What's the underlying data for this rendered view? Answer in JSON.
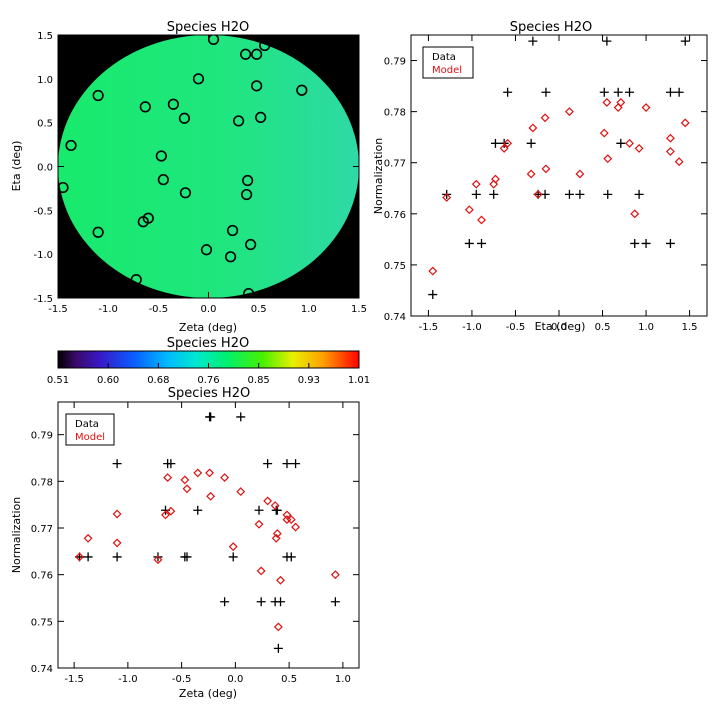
{
  "figure": {
    "colors": {
      "frame": "#000000",
      "data_marker": "#000000",
      "model_marker": "#e01010",
      "map_background": "#000000",
      "map_fill": "#1fe878",
      "map_fill_edge": "#27dc9a"
    }
  },
  "chart_data": [
    {
      "id": "map",
      "type": "heatmap",
      "title": "Species H2O",
      "xlabel": "Zeta (deg)",
      "ylabel": "Eta (deg)",
      "xlim": [
        -1.5,
        1.5
      ],
      "ylim": [
        -1.5,
        1.5
      ],
      "xticks": [
        "-1.5",
        "-1.0",
        "-0.5",
        "0.0",
        "0.5",
        "1.0",
        "1.5"
      ],
      "yticks": [
        "-1.5",
        "-1.0",
        "-0.5",
        "0.0",
        "0.5",
        "1.0",
        "1.5"
      ],
      "field_radius_deg": 1.5,
      "field_value": 0.78,
      "marker": "circle",
      "points": [
        {
          "x": 0.05,
          "y": 1.45
        },
        {
          "x": 0.37,
          "y": 1.28
        },
        {
          "x": 0.48,
          "y": 1.28
        },
        {
          "x": 0.56,
          "y": 1.38
        },
        {
          "x": -0.1,
          "y": 1.0
        },
        {
          "x": 0.48,
          "y": 0.92
        },
        {
          "x": 0.93,
          "y": 0.87
        },
        {
          "x": -1.1,
          "y": 0.81
        },
        {
          "x": -0.35,
          "y": 0.71
        },
        {
          "x": -0.63,
          "y": 0.68
        },
        {
          "x": -0.24,
          "y": 0.55
        },
        {
          "x": 0.52,
          "y": 0.56
        },
        {
          "x": 0.3,
          "y": 0.52
        },
        {
          "x": -1.37,
          "y": 0.24
        },
        {
          "x": -0.47,
          "y": 0.12
        },
        {
          "x": -0.45,
          "y": -0.15
        },
        {
          "x": 0.39,
          "y": -0.16
        },
        {
          "x": -1.45,
          "y": -0.24
        },
        {
          "x": -0.23,
          "y": -0.3
        },
        {
          "x": 0.38,
          "y": -0.32
        },
        {
          "x": -0.6,
          "y": -0.59
        },
        {
          "x": -0.65,
          "y": -0.63
        },
        {
          "x": 0.24,
          "y": -0.73
        },
        {
          "x": -1.1,
          "y": -0.75
        },
        {
          "x": 0.42,
          "y": -0.89
        },
        {
          "x": -0.02,
          "y": -0.95
        },
        {
          "x": 0.22,
          "y": -1.03
        },
        {
          "x": -0.72,
          "y": -1.29
        },
        {
          "x": 0.4,
          "y": -1.45
        }
      ]
    },
    {
      "id": "colorbar",
      "type": "heatmap",
      "title": "Species H2O",
      "range": [
        0.51,
        1.01
      ],
      "ticks": [
        "0.51",
        "0.60",
        "0.68",
        "0.76",
        "0.85",
        "0.93",
        "1.01"
      ]
    },
    {
      "id": "eta_plot",
      "type": "scatter",
      "title": "Species H2O",
      "xlabel": "Eta (deg)",
      "ylabel": "Normalization",
      "xlim": [
        -1.7,
        1.7
      ],
      "ylim": [
        0.74,
        0.795
      ],
      "xticks": [
        "-1.5",
        "-1.0",
        "-0.5",
        "0.0",
        "0.5",
        "1.0",
        "1.5"
      ],
      "yticks": [
        "0.74",
        "0.75",
        "0.76",
        "0.77",
        "0.78",
        "0.79"
      ],
      "legend": {
        "placement": "top-left",
        "entries": [
          "Data",
          "Model"
        ]
      },
      "series": [
        {
          "name": "Data",
          "marker": "plus",
          "points": [
            [
              -1.45,
              0.7442
            ],
            [
              -1.29,
              0.7638
            ],
            [
              -1.03,
              0.7542
            ],
            [
              -0.95,
              0.7638
            ],
            [
              -0.89,
              0.7542
            ],
            [
              -0.75,
              0.7638
            ],
            [
              -0.73,
              0.7738
            ],
            [
              -0.63,
              0.7738
            ],
            [
              -0.59,
              0.7838
            ],
            [
              -0.32,
              0.7738
            ],
            [
              -0.3,
              0.7938
            ],
            [
              -0.24,
              0.7638
            ],
            [
              -0.16,
              0.7638
            ],
            [
              -0.15,
              0.7838
            ],
            [
              0.12,
              0.7638
            ],
            [
              0.24,
              0.7638
            ],
            [
              0.52,
              0.7838
            ],
            [
              0.55,
              0.7938
            ],
            [
              0.56,
              0.7638
            ],
            [
              0.68,
              0.7838
            ],
            [
              0.71,
              0.7738
            ],
            [
              0.81,
              0.7838
            ],
            [
              0.87,
              0.7542
            ],
            [
              0.92,
              0.7638
            ],
            [
              1.0,
              0.7542
            ],
            [
              1.28,
              0.7838
            ],
            [
              1.28,
              0.7542
            ],
            [
              1.38,
              0.7838
            ],
            [
              1.45,
              0.7938
            ]
          ]
        },
        {
          "name": "Model",
          "marker": "diamond",
          "points": [
            [
              -1.45,
              0.7488
            ],
            [
              -1.29,
              0.7632
            ],
            [
              -1.03,
              0.7608
            ],
            [
              -0.95,
              0.7658
            ],
            [
              -0.89,
              0.7588
            ],
            [
              -0.75,
              0.7658
            ],
            [
              -0.73,
              0.7668
            ],
            [
              -0.63,
              0.7728
            ],
            [
              -0.59,
              0.7738
            ],
            [
              -0.32,
              0.7678
            ],
            [
              -0.3,
              0.7768
            ],
            [
              -0.24,
              0.7638
            ],
            [
              -0.16,
              0.7788
            ],
            [
              -0.15,
              0.7688
            ],
            [
              0.12,
              0.78
            ],
            [
              0.24,
              0.7678
            ],
            [
              0.52,
              0.7758
            ],
            [
              0.55,
              0.7818
            ],
            [
              0.56,
              0.7708
            ],
            [
              0.68,
              0.7808
            ],
            [
              0.71,
              0.7818
            ],
            [
              0.81,
              0.7738
            ],
            [
              0.87,
              0.76
            ],
            [
              0.92,
              0.7728
            ],
            [
              1.0,
              0.7808
            ],
            [
              1.28,
              0.7748
            ],
            [
              1.28,
              0.7722
            ],
            [
              1.38,
              0.7702
            ],
            [
              1.45,
              0.7778
            ]
          ]
        }
      ]
    },
    {
      "id": "zeta_plot",
      "type": "scatter",
      "title": "Species H2O",
      "xlabel": "Zeta (deg)",
      "ylabel": "Normalization",
      "xlim": [
        -1.65,
        1.15
      ],
      "ylim": [
        0.74,
        0.797
      ],
      "xticks": [
        "-1.5",
        "-1.0",
        "-0.5",
        "0.0",
        "0.5",
        "1.0"
      ],
      "yticks": [
        "0.74",
        "0.75",
        "0.76",
        "0.77",
        "0.78",
        "0.79"
      ],
      "legend": {
        "placement": "top-left",
        "entries": [
          "Data",
          "Model"
        ]
      },
      "series": [
        {
          "name": "Data",
          "marker": "plus",
          "points": [
            [
              -1.45,
              0.7638
            ],
            [
              -1.37,
              0.7638
            ],
            [
              -1.1,
              0.7838
            ],
            [
              -1.1,
              0.7638
            ],
            [
              -0.72,
              0.7638
            ],
            [
              -0.65,
              0.7738
            ],
            [
              -0.63,
              0.7838
            ],
            [
              -0.6,
              0.7838
            ],
            [
              -0.47,
              0.7638
            ],
            [
              -0.45,
              0.7638
            ],
            [
              -0.35,
              0.7738
            ],
            [
              -0.24,
              0.7938
            ],
            [
              -0.23,
              0.7938
            ],
            [
              -0.1,
              0.7542
            ],
            [
              -0.02,
              0.7638
            ],
            [
              0.05,
              0.7938
            ],
            [
              0.22,
              0.7738
            ],
            [
              0.24,
              0.7542
            ],
            [
              0.3,
              0.7838
            ],
            [
              0.37,
              0.7542
            ],
            [
              0.38,
              0.7738
            ],
            [
              0.39,
              0.7738
            ],
            [
              0.4,
              0.7442
            ],
            [
              0.42,
              0.7542
            ],
            [
              0.48,
              0.7838
            ],
            [
              0.48,
              0.7638
            ],
            [
              0.52,
              0.7638
            ],
            [
              0.56,
              0.7838
            ],
            [
              0.93,
              0.7542
            ]
          ]
        },
        {
          "name": "Model",
          "marker": "diamond",
          "points": [
            [
              -1.45,
              0.7638
            ],
            [
              -1.37,
              0.7678
            ],
            [
              -1.1,
              0.773
            ],
            [
              -1.1,
              0.7668
            ],
            [
              -0.72,
              0.7632
            ],
            [
              -0.65,
              0.7728
            ],
            [
              -0.63,
              0.7808
            ],
            [
              -0.6,
              0.7736
            ],
            [
              -0.47,
              0.7803
            ],
            [
              -0.45,
              0.7784
            ],
            [
              -0.35,
              0.7818
            ],
            [
              -0.24,
              0.7818
            ],
            [
              -0.23,
              0.7768
            ],
            [
              -0.1,
              0.7808
            ],
            [
              -0.02,
              0.766
            ],
            [
              0.05,
              0.7778
            ],
            [
              0.22,
              0.7708
            ],
            [
              0.24,
              0.7608
            ],
            [
              0.3,
              0.7758
            ],
            [
              0.37,
              0.7748
            ],
            [
              0.38,
              0.7678
            ],
            [
              0.39,
              0.7688
            ],
            [
              0.4,
              0.7488
            ],
            [
              0.42,
              0.7588
            ],
            [
              0.48,
              0.7728
            ],
            [
              0.48,
              0.7718
            ],
            [
              0.52,
              0.7718
            ],
            [
              0.56,
              0.7702
            ],
            [
              0.93,
              0.76
            ]
          ]
        }
      ]
    }
  ]
}
